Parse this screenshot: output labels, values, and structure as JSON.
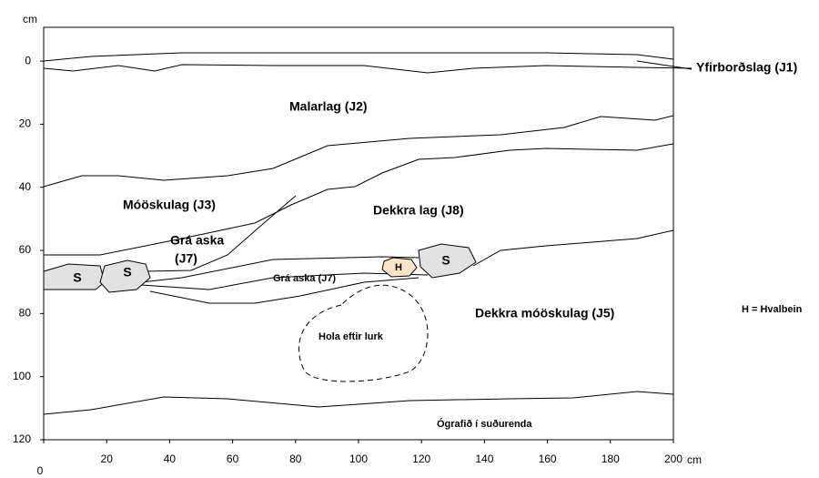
{
  "axes": {
    "x_unit": "cm",
    "y_unit": "cm",
    "xlim": [
      0,
      200
    ],
    "ylim": [
      -10.7,
      120
    ],
    "xticks": [
      0,
      20,
      40,
      60,
      80,
      100,
      120,
      140,
      160,
      180,
      200
    ],
    "yticks": [
      0,
      20,
      40,
      60,
      80,
      100,
      120
    ]
  },
  "layers": {
    "j1": "Yfirborðslag (J1)",
    "j2": "Malarlag (J2)",
    "j3": "Móöskulag (J3)",
    "j8": "Dekkra lag (J8)",
    "j7_line1": "Grá aska",
    "j7_line2": "(J7)",
    "j7_small": "Grá aska (J7)",
    "j5": "Dekkra móöskulag (J5)",
    "hole": "Hola eftir lurk",
    "unexcavated": "Ógrafið í suðurenda"
  },
  "stones": [
    "S",
    "S",
    "S"
  ],
  "bone": "H",
  "legend": "H = Hvalbein"
}
